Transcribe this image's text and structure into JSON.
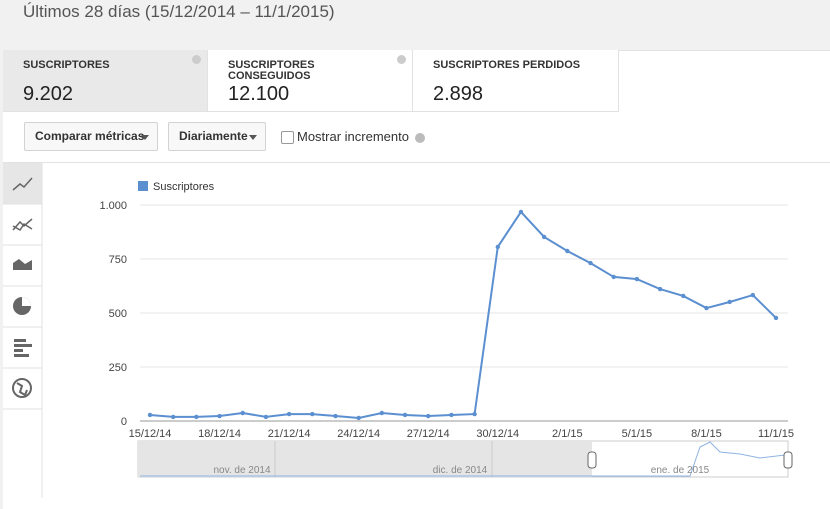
{
  "header": {
    "title": "Últimos 28 días (15/12/2014 – 11/1/2015)"
  },
  "tabs": [
    {
      "label": "SUSCRIPTORES",
      "value": "9.202"
    },
    {
      "label": "SUSCRIPTORES CONSEGUIDOS",
      "value": "12.100"
    },
    {
      "label": "SUSCRIPTORES PERDIDOS",
      "value": "2.898"
    }
  ],
  "controls": {
    "compare": "Comparar métricas",
    "interval": "Diariamente",
    "checkbox": "Mostrar incremento"
  },
  "chart_data": {
    "type": "line",
    "categories": [
      "15/12/14",
      null,
      null,
      "18/12/14",
      null,
      null,
      "21/12/14",
      null,
      null,
      "24/12/14",
      null,
      null,
      "27/12/14",
      null,
      null,
      "30/12/14",
      null,
      null,
      "2/1/15",
      null,
      null,
      "5/1/15",
      null,
      null,
      "8/1/15",
      null,
      null,
      "11/1/15"
    ],
    "series": [
      {
        "name": "Suscriptores",
        "color": "#5b8fd0",
        "values": [
          28,
          19,
          19,
          23,
          37,
          19,
          32,
          32,
          23,
          14,
          37,
          28,
          23,
          28,
          32,
          806,
          968,
          852,
          787,
          731,
          667,
          657,
          611,
          579,
          523,
          551,
          583,
          477
        ]
      }
    ],
    "ylim": [
      0,
      1000
    ],
    "yticks": [
      0,
      250,
      500,
      750,
      {
        "value": 1000,
        "label": "1.000"
      }
    ],
    "grid": true,
    "navigator_labels": [
      "nov. de 2014",
      "dic. de 2014",
      "ene. de 2015"
    ]
  }
}
